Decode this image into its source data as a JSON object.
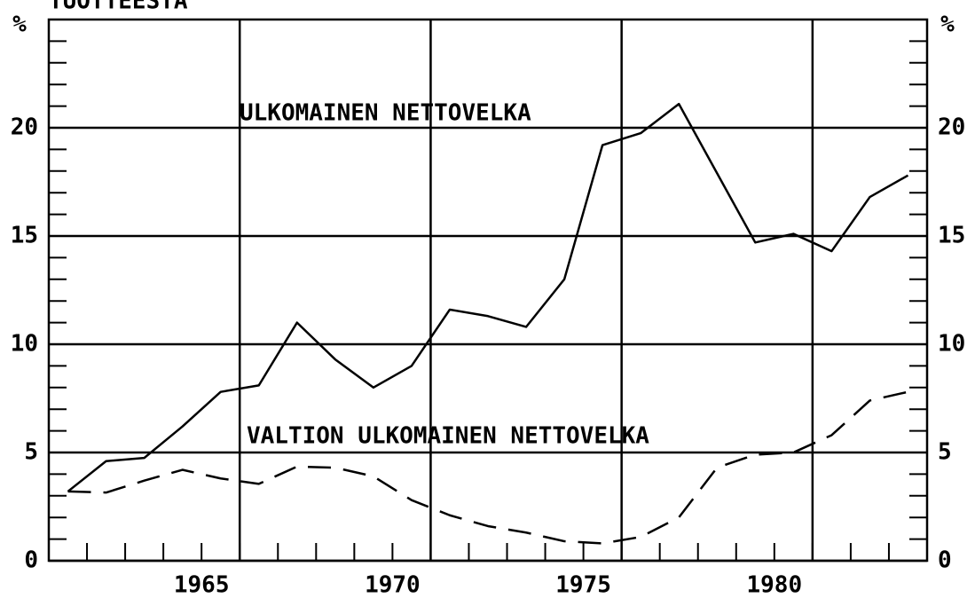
{
  "chart_data": {
    "type": "line",
    "title": "TUOTTEESTA",
    "y_unit_left": "%",
    "y_unit_right": "%",
    "annotations": [
      "ULKOMAINEN NETTOVELKA",
      "VALTION ULKOMAINEN NETTOVELKA"
    ],
    "x": [
      1961.5,
      1962.5,
      1963.5,
      1964.5,
      1965.5,
      1966.5,
      1967.5,
      1968.5,
      1969.5,
      1970.5,
      1971.5,
      1972.5,
      1973.5,
      1974.5,
      1975.5,
      1976.5,
      1977.5,
      1978.5,
      1979.5,
      1980.5,
      1981.5,
      1982.5,
      1983.5
    ],
    "series": [
      {
        "name": "ULKOMAINEN NETTOVELKA",
        "color": "#000000",
        "dash": false,
        "values": [
          3.2,
          4.6,
          4.75,
          6.2,
          7.8,
          8.1,
          11.0,
          9.3,
          8.0,
          9.0,
          11.6,
          11.3,
          10.8,
          13.0,
          19.2,
          19.75,
          21.1,
          17.9,
          14.7,
          15.1,
          14.3,
          16.8,
          17.8
        ]
      },
      {
        "name": "VALTION ULKOMAINEN NETTOVELKA",
        "color": "#000000",
        "dash": true,
        "values": [
          3.2,
          3.15,
          3.7,
          4.2,
          3.8,
          3.55,
          4.35,
          4.3,
          3.9,
          2.8,
          2.1,
          1.6,
          1.3,
          0.9,
          0.8,
          1.1,
          2.0,
          4.3,
          4.9,
          5.0,
          5.8,
          7.4,
          7.8
        ]
      }
    ],
    "xlim": [
      1961,
      1984
    ],
    "xticks": [
      1965,
      1970,
      1975,
      1980
    ],
    "xgrid": [
      1966,
      1971,
      1976,
      1981
    ],
    "xminor": [
      1962,
      1963,
      1964,
      1965,
      1966,
      1967,
      1968,
      1969,
      1970,
      1971,
      1972,
      1973,
      1974,
      1975,
      1976,
      1977,
      1978,
      1979,
      1980,
      1981,
      1982,
      1983
    ],
    "ylim": [
      0,
      25
    ],
    "yticks": [
      0,
      5,
      10,
      15,
      20
    ],
    "yminor": [
      1,
      2,
      3,
      4,
      6,
      7,
      8,
      9,
      11,
      12,
      13,
      14,
      16,
      17,
      18,
      19,
      21,
      22,
      23,
      24
    ],
    "grid": true
  }
}
